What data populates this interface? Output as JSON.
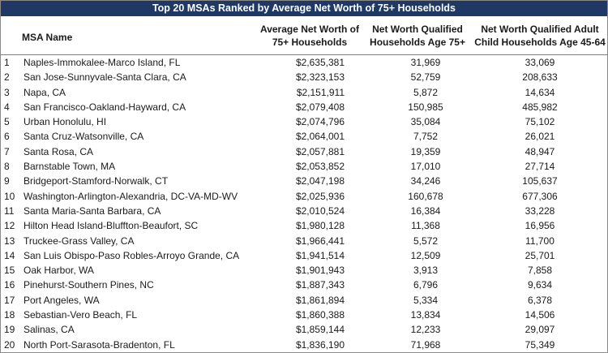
{
  "title": "Top 20 MSAs Ranked by Average Net Worth of 75+ Households",
  "headers": {
    "name": "MSA Name",
    "avg_line1": "Average Net Worth of",
    "avg_line2": "75+ Households",
    "nw75_line1": "Net Worth Qualified",
    "nw75_line2": "Households Age 75+",
    "nw45_line1": "Net Worth Qualified Adult",
    "nw45_line2": "Child Households Age 45-64"
  },
  "rows": [
    {
      "rank": "1",
      "name": "Naples-Immokalee-Marco Island, FL",
      "avg": "$2,635,381",
      "nw75": "31,969",
      "nw45": "33,069"
    },
    {
      "rank": "2",
      "name": "San Jose-Sunnyvale-Santa Clara, CA",
      "avg": "$2,323,153",
      "nw75": "52,759",
      "nw45": "208,633"
    },
    {
      "rank": "3",
      "name": "Napa, CA",
      "avg": "$2,151,911",
      "nw75": "5,872",
      "nw45": "14,634"
    },
    {
      "rank": "4",
      "name": "San Francisco-Oakland-Hayward, CA",
      "avg": "$2,079,408",
      "nw75": "150,985",
      "nw45": "485,982"
    },
    {
      "rank": "5",
      "name": "Urban Honolulu, HI",
      "avg": "$2,074,796",
      "nw75": "35,084",
      "nw45": "75,102"
    },
    {
      "rank": "6",
      "name": "Santa Cruz-Watsonville, CA",
      "avg": "$2,064,001",
      "nw75": "7,752",
      "nw45": "26,021"
    },
    {
      "rank": "7",
      "name": "Santa Rosa, CA",
      "avg": "$2,057,881",
      "nw75": "19,359",
      "nw45": "48,947"
    },
    {
      "rank": "8",
      "name": "Barnstable Town, MA",
      "avg": "$2,053,852",
      "nw75": "17,010",
      "nw45": "27,714"
    },
    {
      "rank": "9",
      "name": "Bridgeport-Stamford-Norwalk, CT",
      "avg": "$2,047,198",
      "nw75": "34,246",
      "nw45": "105,637"
    },
    {
      "rank": "10",
      "name": "Washington-Arlington-Alexandria, DC-VA-MD-WV",
      "avg": "$2,025,936",
      "nw75": "160,678",
      "nw45": "677,306"
    },
    {
      "rank": "11",
      "name": "Santa Maria-Santa Barbara, CA",
      "avg": "$2,010,524",
      "nw75": "16,384",
      "nw45": "33,228"
    },
    {
      "rank": "12",
      "name": "Hilton Head Island-Bluffton-Beaufort, SC",
      "avg": "$1,980,128",
      "nw75": "11,368",
      "nw45": "16,956"
    },
    {
      "rank": "13",
      "name": "Truckee-Grass Valley, CA",
      "avg": "$1,966,441",
      "nw75": "5,572",
      "nw45": "11,700"
    },
    {
      "rank": "14",
      "name": "San Luis Obispo-Paso Robles-Arroyo Grande, CA",
      "avg": "$1,941,514",
      "nw75": "12,509",
      "nw45": "25,701"
    },
    {
      "rank": "15",
      "name": "Oak Harbor, WA",
      "avg": "$1,901,943",
      "nw75": "3,913",
      "nw45": "7,858"
    },
    {
      "rank": "16",
      "name": "Pinehurst-Southern Pines, NC",
      "avg": "$1,887,343",
      "nw75": "6,796",
      "nw45": "9,634"
    },
    {
      "rank": "17",
      "name": "Port Angeles, WA",
      "avg": "$1,861,894",
      "nw75": "5,334",
      "nw45": "6,378"
    },
    {
      "rank": "18",
      "name": "Sebastian-Vero Beach, FL",
      "avg": "$1,860,388",
      "nw75": "13,834",
      "nw45": "14,506"
    },
    {
      "rank": "19",
      "name": "Salinas, CA",
      "avg": "$1,859,144",
      "nw75": "12,233",
      "nw45": "29,097"
    },
    {
      "rank": "20",
      "name": "North Port-Sarasota-Bradenton, FL",
      "avg": "$1,836,190",
      "nw75": "71,968",
      "nw45": "75,349"
    }
  ]
}
